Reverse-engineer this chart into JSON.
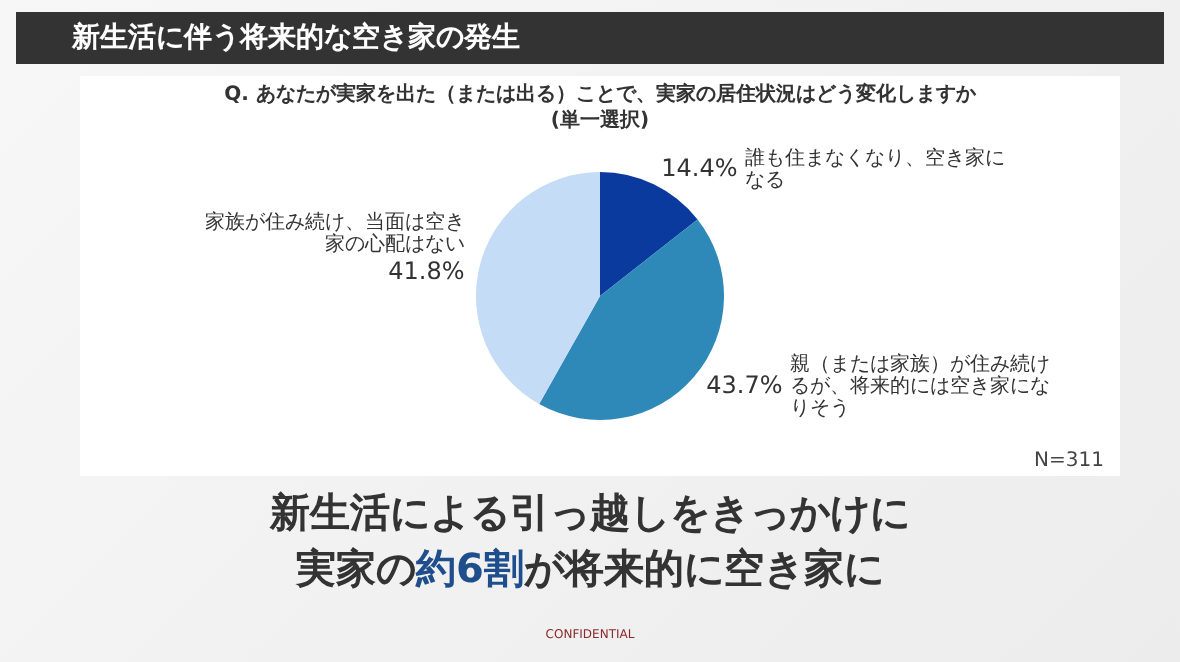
{
  "chart_data": {
    "type": "pie",
    "title": "新生活に伴う将来的な空き家の発生",
    "subtitle": "Q. あなたが実家を出た（または出る）ことで、実家の居住状況はどう変化しますか\n(単一選択)",
    "categories": [
      "誰も住まなくなり、空き家になる",
      "親（または家族）が住み続けるが、将来的には空き家になりそう",
      "家族が住み続け、当面は空き家の心配はない"
    ],
    "values": [
      14.4,
      43.7,
      41.8
    ],
    "value_labels": [
      "14.4%",
      "43.7%",
      "41.8%"
    ],
    "colors": [
      "#0b3a9e",
      "#2e88b8",
      "#c5dcf7"
    ],
    "legend": false,
    "annotations": [
      "N=311",
      "新生活による引っ越しをきっかけに",
      "実家の",
      "約6割",
      "が将来的に空き家に",
      "CONFIDENTIAL"
    ]
  }
}
